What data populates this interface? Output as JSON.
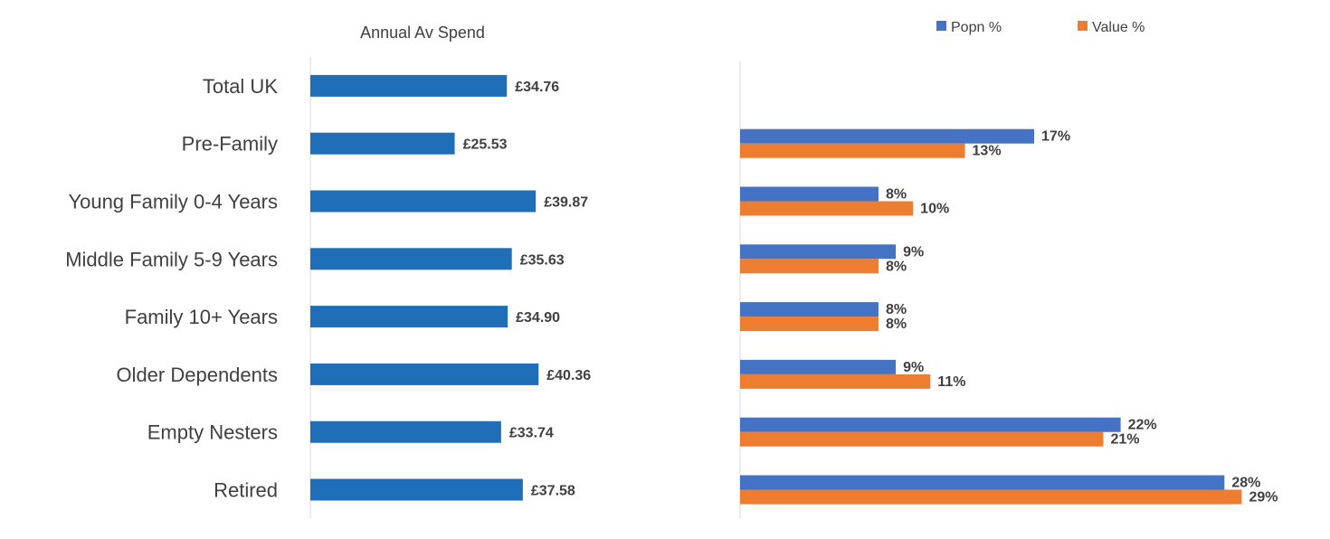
{
  "chart_data": [
    {
      "type": "bar",
      "orientation": "horizontal",
      "title": "Annual Av Spend",
      "categories": [
        "Total UK",
        "Pre-Family",
        "Young Family 0-4 Years",
        "Middle Family 5-9 Years",
        "Family 10+ Years",
        "Older Dependents",
        "Empty Nesters",
        "Retired"
      ],
      "values": [
        34.76,
        25.53,
        39.87,
        35.63,
        34.9,
        40.36,
        33.74,
        37.58
      ],
      "value_labels": [
        "£34.76",
        "£25.53",
        "£39.87",
        "£35.63",
        "£34.90",
        "£40.36",
        "£33.74",
        "£37.58"
      ],
      "color": "#1f6fb8",
      "xlim": [
        0,
        48
      ],
      "grid": false,
      "legend": "none"
    },
    {
      "type": "bar",
      "orientation": "horizontal",
      "categories": [
        "Total UK",
        "Pre-Family",
        "Young Family 0-4 Years",
        "Middle Family 5-9 Years",
        "Family 10+ Years",
        "Older Dependents",
        "Empty Nesters",
        "Retired"
      ],
      "series": [
        {
          "name": "Popn %",
          "color": "#4472c4",
          "values": [
            null,
            17,
            8,
            9,
            8,
            9,
            22,
            28
          ],
          "labels": [
            "",
            "17%",
            "8%",
            "9%",
            "8%",
            "9%",
            "22%",
            "28%"
          ]
        },
        {
          "name": "Value %",
          "color": "#ed7d31",
          "values": [
            null,
            13,
            10,
            8,
            8,
            11,
            21,
            29
          ],
          "labels": [
            "",
            "13%",
            "10%",
            "8%",
            "8%",
            "11%",
            "21%",
            "29%"
          ]
        }
      ],
      "xlim": [
        0,
        29.5
      ],
      "grid": false,
      "legend": "top-right"
    }
  ]
}
